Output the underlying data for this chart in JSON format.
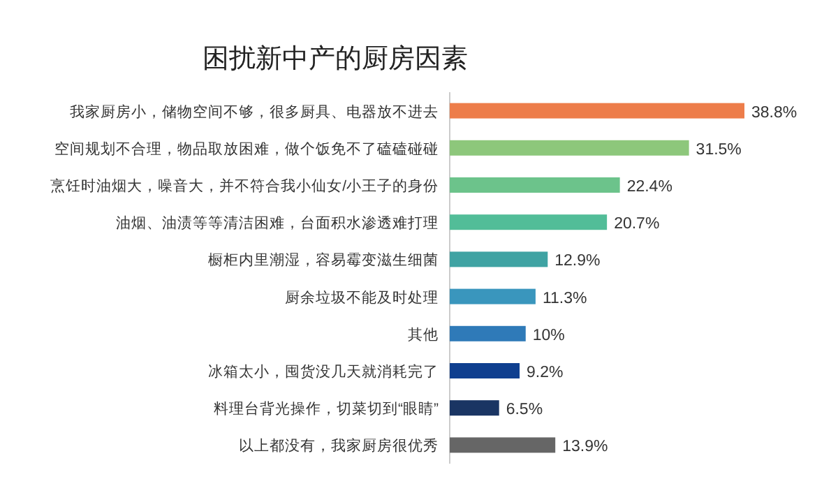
{
  "chart_data": {
    "type": "bar",
    "orientation": "horizontal",
    "title": "困扰新中产的厨房因素",
    "categories": [
      "我家厨房小，储物空间不够，很多厨具、电器放不进去",
      "空间规划不合理，物品取放困难，做个饭免不了磕磕碰碰",
      "烹饪时油烟大，噪音大，并不符合我小仙女/小王子的身份",
      "油烟、油渍等等清洁困难，台面积水渗透难打理",
      "橱柜内里潮湿，容易霉变滋生细菌",
      "厨余垃圾不能及时处理",
      "其他",
      "冰箱太小，囤货没几天就消耗完了",
      "料理台背光操作，切菜切到“眼睛”",
      "以上都没有，我家厨房很优秀"
    ],
    "values": [
      38.8,
      31.5,
      22.4,
      20.7,
      12.9,
      11.3,
      10,
      9.2,
      6.5,
      13.9
    ],
    "value_labels": [
      "38.8%",
      "31.5%",
      "22.4%",
      "20.7%",
      "12.9%",
      "11.3%",
      "10%",
      "9.2%",
      "6.5%",
      "13.9%"
    ],
    "colors": [
      "#ed7d4a",
      "#8dc77b",
      "#6cc38b",
      "#52bd98",
      "#3fa3a3",
      "#3a96bd",
      "#2f7ab8",
      "#0f3f8f",
      "#1a3563",
      "#666666"
    ]
  }
}
